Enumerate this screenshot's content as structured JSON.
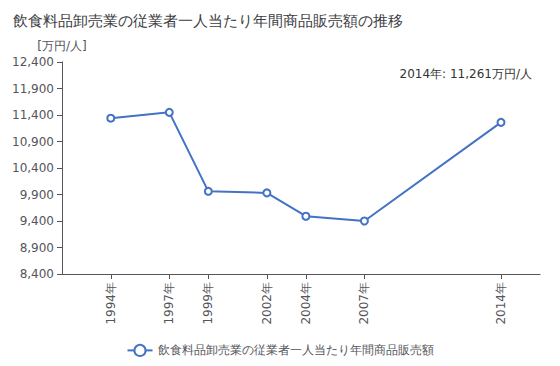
{
  "chart_data": {
    "type": "line",
    "title": "飲食料品卸売業の従業者一人当たり年間商品販売額の推移",
    "ylabel": "[万円/人]",
    "annotation": "2014年: 11,261万円/人",
    "x": [
      1994,
      1997,
      1999,
      2002,
      2004,
      2007,
      2014
    ],
    "series": [
      {
        "name": "飲食料品卸売業の従業者一人当たり年間商品販売額",
        "color": "#4472C4",
        "values": [
          11340,
          11450,
          9960,
          9930,
          9490,
          9400,
          11261
        ]
      }
    ],
    "xlim": [
      1991.5,
      2016
    ],
    "xticks": [
      {
        "value": 1994,
        "label": "1994年"
      },
      {
        "value": 1997,
        "label": "1997年"
      },
      {
        "value": 1999,
        "label": "1999年"
      },
      {
        "value": 2002,
        "label": "2002年"
      },
      {
        "value": 2004,
        "label": "2004年"
      },
      {
        "value": 2007,
        "label": "2007年"
      },
      {
        "value": 2014,
        "label": "2014年"
      }
    ],
    "ylim": [
      8400,
      12400
    ],
    "yticks": [
      {
        "value": 8400,
        "label": "8,400"
      },
      {
        "value": 8900,
        "label": "8,900"
      },
      {
        "value": 9400,
        "label": "9,400"
      },
      {
        "value": 9900,
        "label": "9,900"
      },
      {
        "value": 10400,
        "label": "10,400"
      },
      {
        "value": 10900,
        "label": "10,900"
      },
      {
        "value": 11400,
        "label": "11,400"
      },
      {
        "value": 11900,
        "label": "11,900"
      },
      {
        "value": 12400,
        "label": "12,400"
      }
    ],
    "grid": false,
    "legend": "bottom",
    "marker": "circle"
  }
}
